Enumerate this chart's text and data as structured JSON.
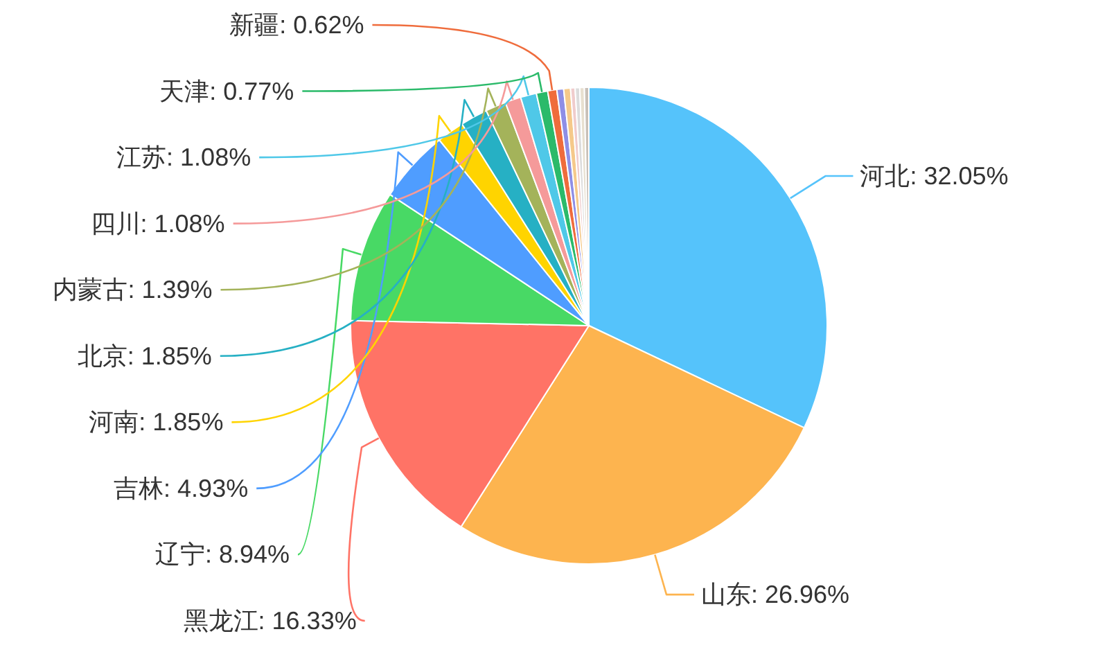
{
  "chart_data": {
    "type": "pie",
    "categories": [
      "河北",
      "山东",
      "黑龙江",
      "辽宁",
      "吉林",
      "河南",
      "北京",
      "内蒙古",
      "四川",
      "江苏",
      "天津",
      "新疆",
      null,
      null,
      null,
      null,
      null,
      null
    ],
    "values": [
      32.05,
      26.96,
      16.33,
      8.94,
      4.93,
      1.85,
      1.85,
      1.39,
      1.08,
      1.08,
      0.77,
      0.62,
      0.46,
      0.46,
      0.31,
      0.31,
      0.31,
      0.3
    ],
    "value_labels": [
      "32.05%",
      "26.96%",
      "16.33%",
      "8.94%",
      "4.93%",
      "1.85%",
      "1.85%",
      "1.39%",
      "1.08%",
      "1.08%",
      "0.77%",
      "0.62%",
      null,
      null,
      null,
      null,
      null,
      null
    ],
    "colors": [
      "#55c3fb",
      "#fdb44f",
      "#ff7366",
      "#48d965",
      "#4f9dff",
      "#ffd400",
      "#26b0c4",
      "#a4b35a",
      "#f59a9a",
      "#4fc8e8",
      "#2bba6a",
      "#ef6c3c",
      "#8e8ee6",
      "#f5c98a",
      "#f0cccc",
      "#dcdcdc",
      "#e8e0d0",
      "#c8c0b8"
    ]
  }
}
